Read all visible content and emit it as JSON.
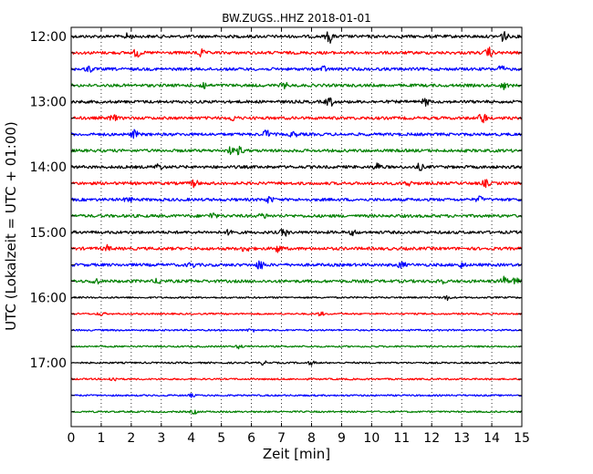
{
  "chart_data": {
    "type": "line",
    "title": "BW.ZUGS..HHZ 2018-01-01",
    "xlabel": "Zeit  [min]",
    "ylabel": "UTC (Lokalzeit = UTC + 01:00)",
    "xlim": [
      0,
      15
    ],
    "x_ticks": [
      0,
      1,
      2,
      3,
      4,
      5,
      6,
      7,
      8,
      9,
      10,
      11,
      12,
      13,
      14,
      15
    ],
    "y_tick_labels": [
      "12:00",
      "13:00",
      "14:00",
      "15:00",
      "16:00",
      "17:00"
    ],
    "x_grid": "dotted",
    "colors": [
      "#000000",
      "#ff0000",
      "#0000ff",
      "#008000"
    ],
    "series": [
      {
        "start": "12:00",
        "events": [
          [
            1.9,
            0.5
          ],
          [
            8.6,
            1.0
          ],
          [
            14.4,
            0.9
          ]
        ]
      },
      {
        "start": "12:15",
        "events": [
          [
            2.2,
            0.7
          ],
          [
            4.3,
            0.6
          ],
          [
            13.9,
            0.8
          ]
        ]
      },
      {
        "start": "12:30",
        "events": [
          [
            0.6,
            0.5
          ],
          [
            8.4,
            0.4
          ],
          [
            14.3,
            0.5
          ]
        ]
      },
      {
        "start": "12:45",
        "events": [
          [
            4.4,
            0.6
          ],
          [
            7.1,
            0.4
          ],
          [
            14.4,
            0.5
          ]
        ]
      },
      {
        "start": "13:00",
        "events": [
          [
            8.6,
            0.8
          ],
          [
            11.8,
            0.5
          ]
        ]
      },
      {
        "start": "13:15",
        "events": [
          [
            1.4,
            0.5
          ],
          [
            5.4,
            0.4
          ],
          [
            13.7,
            0.9
          ]
        ]
      },
      {
        "start": "13:30",
        "events": [
          [
            2.1,
            0.6
          ],
          [
            6.5,
            0.7
          ],
          [
            7.4,
            0.4
          ]
        ]
      },
      {
        "start": "13:45",
        "events": [
          [
            5.3,
            0.5
          ],
          [
            5.6,
            0.6
          ]
        ]
      },
      {
        "start": "14:00",
        "events": [
          [
            2.9,
            0.5
          ],
          [
            10.2,
            0.6
          ],
          [
            11.6,
            0.5
          ]
        ]
      },
      {
        "start": "14:15",
        "events": [
          [
            4.1,
            0.6
          ],
          [
            11.2,
            0.4
          ],
          [
            13.8,
            0.5
          ]
        ]
      },
      {
        "start": "14:30",
        "events": [
          [
            1.9,
            0.4
          ],
          [
            6.6,
            0.5
          ],
          [
            13.6,
            0.4
          ]
        ]
      },
      {
        "start": "14:45",
        "events": [
          [
            4.7,
            0.5
          ],
          [
            6.4,
            0.4
          ]
        ]
      },
      {
        "start": "15:00",
        "events": [
          [
            5.3,
            0.5
          ],
          [
            7.1,
            0.6
          ],
          [
            9.4,
            0.4
          ]
        ]
      },
      {
        "start": "15:15",
        "events": [
          [
            1.2,
            0.4
          ],
          [
            5.8,
            0.5
          ],
          [
            6.9,
            0.6
          ]
        ]
      },
      {
        "start": "15:30",
        "events": [
          [
            4.0,
            0.4
          ],
          [
            6.3,
            0.8
          ],
          [
            11.0,
            0.5
          ],
          [
            13.0,
            0.4
          ]
        ]
      },
      {
        "start": "15:45",
        "events": [
          [
            0.8,
            0.5
          ],
          [
            2.9,
            0.4
          ],
          [
            12.3,
            0.4
          ],
          [
            14.4,
            0.7
          ],
          [
            14.8,
            0.5
          ]
        ]
      },
      {
        "start": "16:00",
        "events": [
          [
            12.5,
            0.4
          ]
        ]
      },
      {
        "start": "16:15",
        "events": [
          [
            1.0,
            0.3
          ],
          [
            8.3,
            0.3
          ]
        ]
      },
      {
        "start": "16:30",
        "events": [
          [
            6.0,
            0.3
          ]
        ]
      },
      {
        "start": "16:45",
        "events": [
          [
            5.6,
            0.3
          ]
        ]
      },
      {
        "start": "17:00",
        "events": [
          [
            6.4,
            0.3
          ],
          [
            8.0,
            0.3
          ]
        ]
      },
      {
        "start": "17:15",
        "events": [
          [
            1.4,
            0.4
          ]
        ]
      },
      {
        "start": "17:30",
        "events": [
          [
            4.0,
            0.2
          ]
        ]
      },
      {
        "start": "17:45",
        "events": [
          [
            4.1,
            0.3
          ]
        ]
      }
    ]
  }
}
